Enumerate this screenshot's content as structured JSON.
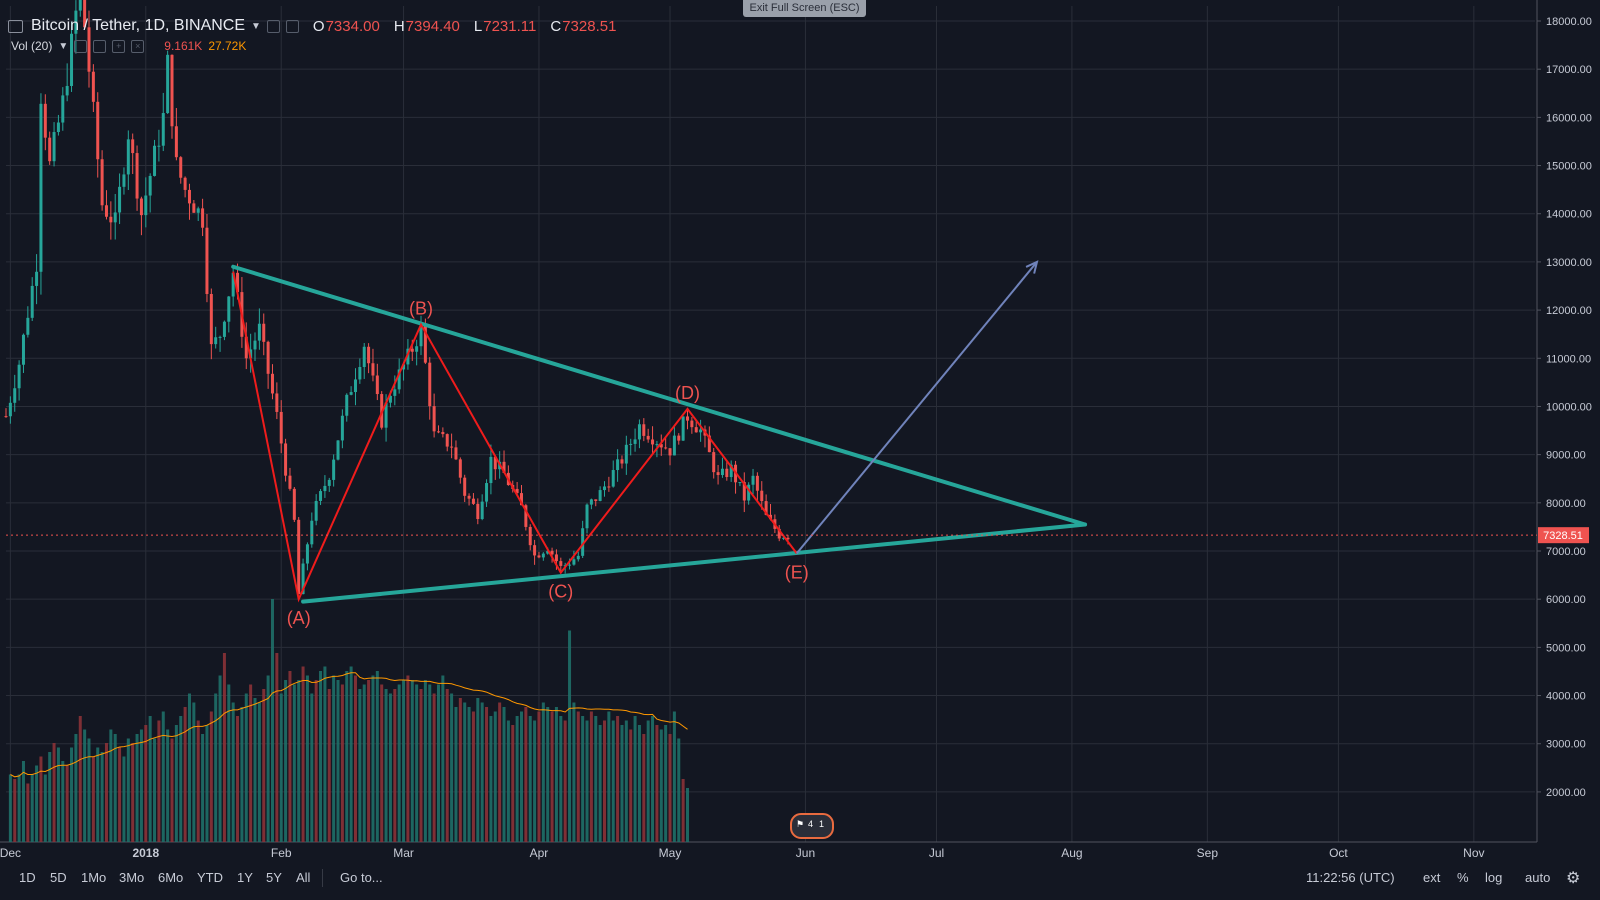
{
  "header": {
    "symbol": "Bitcoin / Tether, 1D, BINANCE",
    "ohlc": [
      {
        "key": "O",
        "value": "7334.00"
      },
      {
        "key": "H",
        "value": "7394.40"
      },
      {
        "key": "L",
        "value": "7231.11"
      },
      {
        "key": "C",
        "value": "7328.51"
      }
    ],
    "volume": {
      "label": "Vol (20)",
      "value": "9.161K",
      "ma": "27.72K"
    }
  },
  "exit_fullscreen_label": "Exit Full Screen (ESC)",
  "bottom_bar": {
    "ranges": [
      "1D",
      "5D",
      "1Mo",
      "3Mo",
      "6Mo",
      "YTD",
      "1Y",
      "5Y",
      "All"
    ],
    "goto": "Go to...",
    "time": "11:22:56 (UTC)",
    "toggles": [
      "ext",
      "%",
      "log",
      "auto"
    ]
  },
  "badges": {
    "flag_count_a": "4",
    "flag_count_b": "1"
  },
  "colors": {
    "background": "#131722",
    "up": "#26a69a",
    "down": "#ef5350",
    "pattern_lines": "#26a69a",
    "wave_lines": "#ef1c1c",
    "arrow": "#7083bb",
    "volume_ma": "#ff9800",
    "price_line": "#ef5350"
  },
  "chart_data": {
    "type": "line",
    "title": "Bitcoin / Tether, 1D, BINANCE",
    "y_axis": {
      "scale": "linear",
      "range": [
        1000,
        18300
      ],
      "tick_labels": [
        "18000.00",
        "17000.00",
        "16000.00",
        "15000.00",
        "14000.00",
        "13000.00",
        "12000.00",
        "11000.00",
        "10000.00",
        "9000.00",
        "8000.00",
        "7000.00",
        "6000.00",
        "5000.00",
        "4000.00",
        "3000.00",
        "2000.00"
      ],
      "current_price_label": "7328.51",
      "current_price": 7328.51
    },
    "x_axis": {
      "range": [
        "2017-11-30",
        "2018-11-15"
      ],
      "tick_labels": [
        {
          "label": "Dec",
          "date": "2017-12-01"
        },
        {
          "label": "2018",
          "date": "2018-01-01"
        },
        {
          "label": "Feb",
          "date": "2018-02-01"
        },
        {
          "label": "Mar",
          "date": "2018-03-01"
        },
        {
          "label": "Apr",
          "date": "2018-04-01"
        },
        {
          "label": "May",
          "date": "2018-05-01"
        },
        {
          "label": "Jun",
          "date": "2018-06-01"
        },
        {
          "label": "Jul",
          "date": "2018-07-01"
        },
        {
          "label": "Aug",
          "date": "2018-08-01"
        },
        {
          "label": "Sep",
          "date": "2018-09-01"
        },
        {
          "label": "Oct",
          "date": "2018-10-01"
        },
        {
          "label": "Nov",
          "date": "2018-11-01"
        }
      ]
    },
    "price_path": [
      [
        "2017-11-30",
        9800
      ],
      [
        "2017-12-03",
        10900
      ],
      [
        "2017-12-07",
        13000
      ],
      [
        "2017-12-08",
        16500
      ],
      [
        "2017-12-10",
        15000
      ],
      [
        "2017-12-13",
        16300
      ],
      [
        "2017-12-15",
        17500
      ],
      [
        "2017-12-17",
        18800
      ],
      [
        "2017-12-19",
        17000
      ],
      [
        "2017-12-22",
        14200
      ],
      [
        "2017-12-25",
        13800
      ],
      [
        "2017-12-28",
        15700
      ],
      [
        "2017-12-31",
        14000
      ],
      [
        "2018-01-03",
        15200
      ],
      [
        "2018-01-05",
        16000
      ],
      [
        "2018-01-06",
        17100
      ],
      [
        "2018-01-08",
        15000
      ],
      [
        "2018-01-10",
        14500
      ],
      [
        "2018-01-14",
        13900
      ],
      [
        "2018-01-16",
        11200
      ],
      [
        "2018-01-18",
        11500
      ],
      [
        "2018-01-21",
        12800
      ],
      [
        "2018-01-24",
        11000
      ],
      [
        "2018-01-27",
        11600
      ],
      [
        "2018-01-31",
        9800
      ],
      [
        "2018-02-04",
        7600
      ],
      [
        "2018-02-05",
        6100
      ],
      [
        "2018-02-08",
        7700
      ],
      [
        "2018-02-12",
        8600
      ],
      [
        "2018-02-16",
        10100
      ],
      [
        "2018-02-20",
        11300
      ],
      [
        "2018-02-24",
        9700
      ],
      [
        "2018-02-26",
        10300
      ],
      [
        "2018-03-03",
        11200
      ],
      [
        "2018-03-05",
        11600
      ],
      [
        "2018-03-08",
        9400
      ],
      [
        "2018-03-12",
        9200
      ],
      [
        "2018-03-15",
        8200
      ],
      [
        "2018-03-18",
        7800
      ],
      [
        "2018-03-21",
        8900
      ],
      [
        "2018-03-24",
        8600
      ],
      [
        "2018-03-28",
        7900
      ],
      [
        "2018-03-31",
        6900
      ],
      [
        "2018-04-03",
        7100
      ],
      [
        "2018-04-06",
        6650
      ],
      [
        "2018-04-10",
        6900
      ],
      [
        "2018-04-12",
        7900
      ],
      [
        "2018-04-15",
        8200
      ],
      [
        "2018-04-20",
        8900
      ],
      [
        "2018-04-24",
        9600
      ],
      [
        "2018-04-28",
        9300
      ],
      [
        "2018-05-01",
        9100
      ],
      [
        "2018-05-05",
        9800
      ],
      [
        "2018-05-08",
        9500
      ],
      [
        "2018-05-12",
        8500
      ],
      [
        "2018-05-15",
        8700
      ],
      [
        "2018-05-18",
        8100
      ],
      [
        "2018-05-20",
        8500
      ],
      [
        "2018-05-23",
        7700
      ],
      [
        "2018-05-26",
        7350
      ],
      [
        "2018-05-28",
        7330
      ]
    ],
    "annotations": {
      "triangle_lines": [
        {
          "from": [
            "2018-01-21",
            12900
          ],
          "to": [
            "2018-08-04",
            7550
          ]
        },
        {
          "from": [
            "2018-02-06",
            5950
          ],
          "to": [
            "2018-08-04",
            7550
          ]
        }
      ],
      "wave_points": [
        {
          "label": "(A)",
          "date": "2018-02-05",
          "price": 6000
        },
        {
          "label": "(B)",
          "date": "2018-03-05",
          "price": 11700
        },
        {
          "label": "(C)",
          "date": "2018-04-06",
          "price": 6550
        },
        {
          "label": "(D)",
          "date": "2018-05-05",
          "price": 9950
        },
        {
          "label": "(E)",
          "date": "2018-05-30",
          "price": 6950
        }
      ],
      "wave_start": [
        "2018-01-21",
        12800
      ],
      "projection_arrow": {
        "from": [
          "2018-05-30",
          6950
        ],
        "to": [
          "2018-07-24",
          13000
        ]
      }
    },
    "volume_series": {
      "start": "2017-12-01",
      "values": [
        1500,
        1400,
        1500,
        1800,
        1300,
        1500,
        1700,
        1900,
        1500,
        2000,
        2200,
        2100,
        1800,
        1700,
        2100,
        2400,
        2800,
        2500,
        2300,
        1900,
        2100,
        2000,
        2200,
        2500,
        2400,
        2100,
        1900,
        2300,
        2200,
        2400,
        2500,
        2600,
        2800,
        2300,
        2700,
        2900,
        2500,
        2300,
        2600,
        2800,
        3000,
        3300,
        3100,
        2700,
        2400,
        2600,
        2900,
        3300,
        3700,
        4200,
        3500,
        3100,
        2800,
        3000,
        3300,
        3500,
        3200,
        3100,
        3400,
        3700,
        5400,
        4200,
        3300,
        3600,
        3800,
        3500,
        3600,
        3900,
        3700,
        3300,
        3600,
        3800,
        3900,
        3400,
        3700,
        3600,
        3500,
        3800,
        3900,
        3700,
        3400,
        3500,
        3600,
        3700,
        3800,
        3500,
        3400,
        3300,
        3400,
        3500,
        3600,
        3700,
        3600,
        3500,
        3400,
        3600,
        3500,
        3300,
        3500,
        3700,
        3400,
        3300,
        3000,
        3200,
        3100,
        3000,
        2900,
        3200,
        3100,
        3000,
        2800,
        2900,
        3100,
        3000,
        2700,
        2600,
        2800,
        2900,
        3000,
        2800,
        2700,
        2900,
        3100,
        3000,
        2900,
        3000,
        2800,
        2700,
        4700,
        3100,
        2900,
        2800,
        2700,
        2900,
        2800,
        2600,
        2700,
        2900,
        2700,
        2800,
        2600,
        2700,
        2500,
        2800,
        2600,
        2400,
        2700,
        2800,
        2600,
        2500,
        2600,
        2400,
        2900,
        2300,
        1400,
        1200
      ],
      "ma_label": "Vol (20)"
    }
  }
}
